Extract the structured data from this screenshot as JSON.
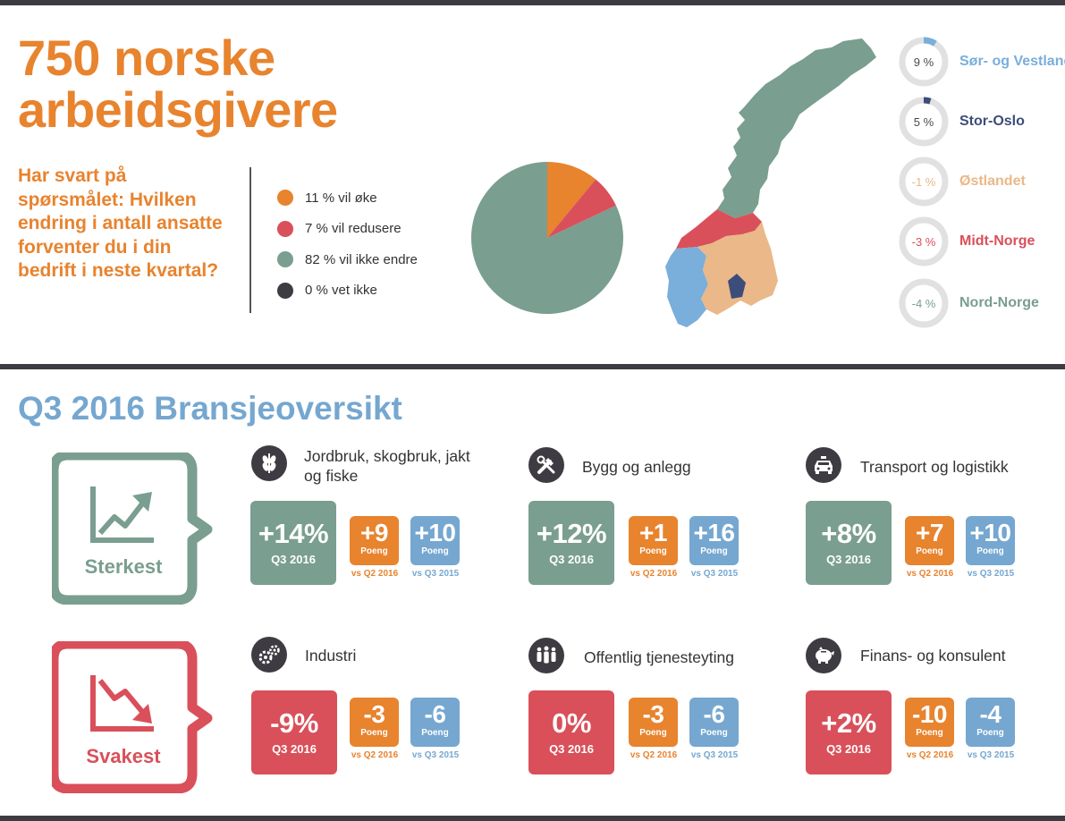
{
  "header": {
    "title_line1": "750 norske",
    "title_line2": "arbeidsgivere",
    "question": "Har svart på spørsmålet: Hvilken endring i antall ansatte forventer du i din bedrift i neste kvartal?"
  },
  "chart_data": {
    "type": "pie",
    "title": "",
    "slices": [
      {
        "label": "11 % vil øke",
        "value": 11,
        "color": "#e8832e"
      },
      {
        "label": "7 % vil redusere",
        "value": 7,
        "color": "#d9505a"
      },
      {
        "label": "82 % vil ikke endre",
        "value": 82,
        "color": "#7a9e8f"
      },
      {
        "label": "0 % vet ikke",
        "value": 0,
        "color": "#3e3b42"
      }
    ]
  },
  "regions": [
    {
      "name": "Sør- og Vestlandet",
      "pct_label": "9 %",
      "value": 9,
      "color": "#7aaedb"
    },
    {
      "name": "Stor-Oslo",
      "pct_label": "5 %",
      "value": 5,
      "color": "#3d4d7a"
    },
    {
      "name": "Østlandet",
      "pct_label": "-1 %",
      "value": -1,
      "color": "#eab889"
    },
    {
      "name": "Midt-Norge",
      "pct_label": "-3 %",
      "value": -3,
      "color": "#d9505a"
    },
    {
      "name": "Nord-Norge",
      "pct_label": "-4 %",
      "value": -4,
      "color": "#7a9e8f"
    }
  ],
  "section": {
    "title": "Q3 2016 Bransjeoversikt"
  },
  "labels": {
    "period": "Q3 2016",
    "points": "Poeng",
    "vs_q2": "vs Q2 2016",
    "vs_q3": "vs Q3 2015"
  },
  "badges": {
    "strongest": "Sterkest",
    "weakest": "Svakest"
  },
  "industries": [
    {
      "name": "Jordbruk, skogbruk, jakt og fiske",
      "icon": "wheat-icon",
      "main": "+14%",
      "vs_q2": "+9",
      "vs_q3": "+10",
      "strength": "strong"
    },
    {
      "name": "Bygg og anlegg",
      "icon": "tools-icon",
      "main": "+12%",
      "vs_q2": "+1",
      "vs_q3": "+16",
      "strength": "strong"
    },
    {
      "name": "Transport og logistikk",
      "icon": "taxi-icon",
      "main": "+8%",
      "vs_q2": "+7",
      "vs_q3": "+10",
      "strength": "strong"
    },
    {
      "name": "Industri",
      "icon": "gears-icon",
      "main": "-9%",
      "vs_q2": "-3",
      "vs_q3": "-6",
      "strength": "weak"
    },
    {
      "name": "Offentlig tjenesteyting",
      "icon": "people-icon",
      "main": "0%",
      "vs_q2": "-3",
      "vs_q3": "-6",
      "strength": "weak"
    },
    {
      "name": "Finans- og konsulent",
      "icon": "piggy-bank-icon",
      "main": "+2%",
      "vs_q2": "-10",
      "vs_q3": "-4",
      "strength": "weak"
    }
  ],
  "colors": {
    "orange": "#e8832e",
    "blue": "#75a7d0",
    "green": "#7a9e8f",
    "red": "#d9505a",
    "dark": "#3e3b42",
    "ring": "#e1e1e1"
  }
}
